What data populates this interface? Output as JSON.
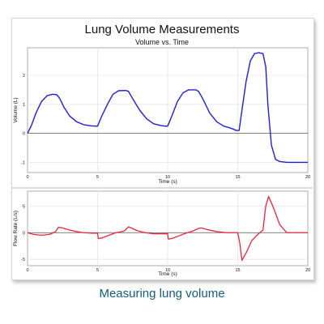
{
  "figure": {
    "title": "Lung Volume Measurements",
    "caption": "Measuring lung volume"
  },
  "colors": {
    "volume_line": "#1d1fd6",
    "flow_line": "#e8243c",
    "zero_line": "#555555",
    "grid": "#e6e6e6",
    "caption": "#155a7a"
  },
  "chart_data": [
    {
      "type": "line",
      "title": "Volume vs. Time",
      "xlabel": "Time (s)",
      "ylabel": "Volume (L)",
      "xlim": [
        0,
        20
      ],
      "ylim": [
        -1.35,
        2.95
      ],
      "xticks": [
        0,
        5,
        10,
        15,
        20
      ],
      "yticks": [
        -1,
        0,
        1,
        2
      ],
      "grid": true,
      "series": [
        {
          "x": [
            0,
            0.3,
            0.6,
            1.0,
            1.4,
            1.8,
            2.1,
            2.3,
            2.6,
            3.0,
            3.5,
            4.0,
            4.5,
            4.8,
            5.0,
            5.3,
            5.7,
            6.1,
            6.5,
            7.0,
            7.2,
            7.5,
            8.0,
            8.5,
            9.0,
            9.5,
            9.8,
            10.0,
            10.3,
            10.7,
            11.1,
            11.5,
            12.0,
            12.2,
            12.5,
            13.0,
            13.5,
            14.0,
            14.5,
            14.9,
            15.1,
            15.3,
            15.6,
            15.9,
            16.2,
            16.5,
            16.8,
            17.0,
            17.15,
            17.4,
            17.7,
            18.0,
            18.5,
            19.0,
            19.5,
            20.0
          ],
          "y": [
            0.0,
            0.3,
            0.7,
            1.1,
            1.3,
            1.35,
            1.33,
            1.2,
            0.9,
            0.6,
            0.4,
            0.3,
            0.26,
            0.25,
            0.25,
            0.6,
            1.0,
            1.35,
            1.47,
            1.48,
            1.45,
            1.2,
            0.8,
            0.5,
            0.33,
            0.27,
            0.25,
            0.25,
            0.6,
            1.1,
            1.4,
            1.5,
            1.5,
            1.45,
            1.2,
            0.7,
            0.4,
            0.25,
            0.18,
            0.1,
            0.1,
            0.8,
            1.8,
            2.5,
            2.75,
            2.78,
            2.75,
            2.3,
            1.0,
            -0.4,
            -0.9,
            -0.97,
            -1.0,
            -1.0,
            -1.0,
            -1.0
          ]
        }
      ]
    },
    {
      "type": "line",
      "title": "",
      "xlabel": "Time (s)",
      "ylabel": "Flow Rate (L/s)",
      "xlim": [
        0,
        20
      ],
      "ylim": [
        -6.2,
        7.8
      ],
      "xticks": [
        0,
        5,
        10,
        15,
        20
      ],
      "yticks": [
        -5,
        0,
        5
      ],
      "grid": true,
      "series": [
        {
          "x": [
            0,
            0.4,
            1.0,
            1.6,
            2.0,
            2.2,
            2.5,
            3.0,
            3.5,
            4.0,
            4.6,
            5.0,
            5.05,
            5.3,
            5.8,
            6.3,
            6.9,
            7.2,
            7.4,
            7.8,
            8.4,
            9.0,
            9.6,
            10.0,
            10.05,
            10.3,
            10.8,
            11.3,
            11.8,
            12.2,
            12.4,
            12.8,
            13.5,
            14.2,
            14.8,
            15.0,
            15.15,
            15.3,
            15.6,
            16.0,
            16.4,
            16.8,
            17.0,
            17.2,
            17.5,
            18.0,
            18.5,
            20.0
          ],
          "y": [
            0.0,
            -0.3,
            -0.5,
            -0.3,
            0.2,
            1.0,
            0.9,
            0.5,
            0.2,
            0.0,
            -0.1,
            -0.1,
            -1.1,
            -1.0,
            -0.5,
            0.0,
            0.3,
            1.1,
            0.9,
            0.4,
            0.0,
            -0.2,
            -0.2,
            -0.2,
            -1.2,
            -1.1,
            -0.6,
            -0.1,
            0.3,
            0.8,
            0.9,
            0.6,
            0.2,
            0.0,
            0.0,
            0.0,
            -2.0,
            -5.2,
            -3.8,
            -1.5,
            -0.4,
            0.5,
            5.0,
            6.8,
            5.0,
            1.5,
            0.0,
            0.0
          ]
        }
      ]
    }
  ]
}
